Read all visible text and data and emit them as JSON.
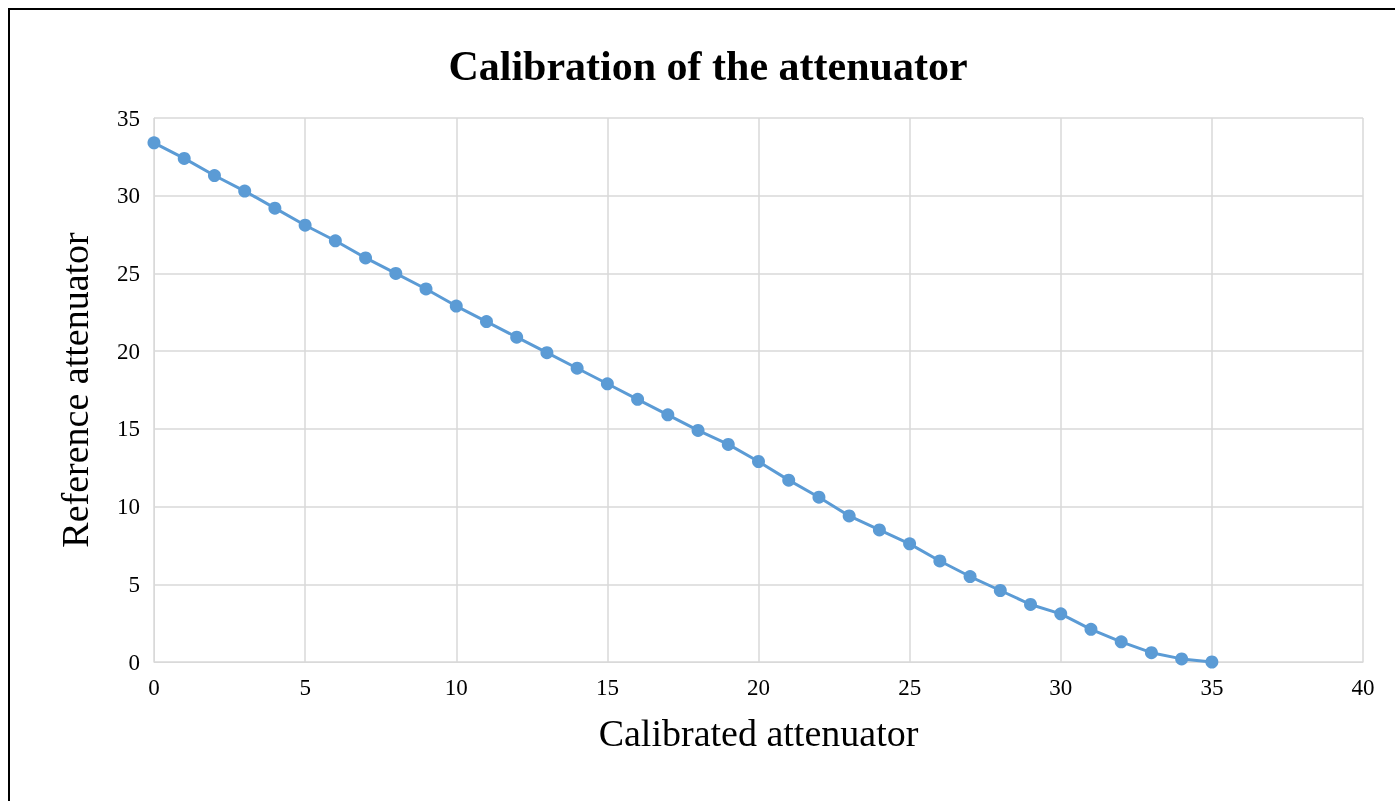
{
  "chart_data": {
    "type": "line",
    "title": "Calibration of the attenuator",
    "xlabel": "Calibrated attenuator",
    "ylabel": "Reference attenuator",
    "x": [
      0,
      1,
      2,
      3,
      4,
      5,
      6,
      7,
      8,
      9,
      10,
      11,
      12,
      13,
      14,
      15,
      16,
      17,
      18,
      19,
      20,
      21,
      22,
      23,
      24,
      25,
      26,
      27,
      28,
      29,
      30,
      31,
      32,
      33,
      34,
      35
    ],
    "series": [
      {
        "color": "#5b9bd5",
        "values": [
          33.4,
          32.4,
          31.3,
          30.3,
          29.2,
          28.1,
          27.1,
          26.0,
          25.0,
          24.0,
          22.9,
          21.9,
          20.9,
          19.9,
          18.9,
          17.9,
          16.9,
          15.9,
          14.9,
          14.0,
          12.9,
          11.7,
          10.6,
          9.4,
          8.5,
          7.6,
          6.5,
          5.5,
          4.6,
          3.7,
          3.1,
          2.1,
          1.3,
          0.6,
          0.2,
          0
        ]
      }
    ],
    "xlim": [
      0,
      40
    ],
    "xticks": [
      0,
      5,
      10,
      15,
      20,
      25,
      30,
      35,
      40
    ],
    "ylim": [
      0,
      35
    ],
    "yticks": [
      0,
      5,
      10,
      15,
      20,
      25,
      30,
      35
    ],
    "grid": true,
    "marker": "circle",
    "line_style": "solid"
  }
}
